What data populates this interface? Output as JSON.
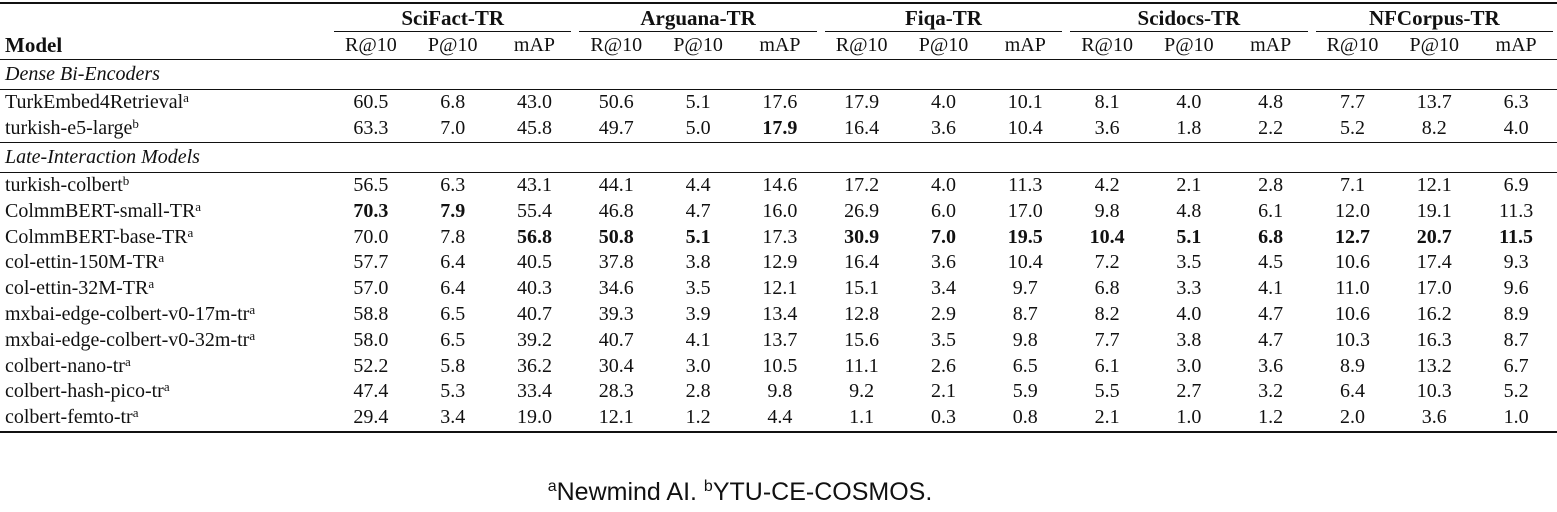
{
  "header": {
    "model_label": "Model",
    "datasets": [
      "SciFact-TR",
      "Arguana-TR",
      "Fiqa-TR",
      "Scidocs-TR",
      "NFCorpus-TR"
    ],
    "metrics": [
      "R@10",
      "P@10",
      "mAP"
    ]
  },
  "sections": [
    {
      "title": "Dense Bi-Encoders",
      "rows": [
        {
          "model": "TurkEmbed4Retrieval",
          "sup": "a",
          "values": [
            "60.5",
            "6.8",
            "43.0",
            "50.6",
            "5.1",
            "17.6",
            "17.9",
            "4.0",
            "10.1",
            "8.1",
            "4.0",
            "4.8",
            "7.7",
            "13.7",
            "6.3"
          ],
          "bold": []
        },
        {
          "model": "turkish-e5-large",
          "sup": "b",
          "values": [
            "63.3",
            "7.0",
            "45.8",
            "49.7",
            "5.0",
            "17.9",
            "16.4",
            "3.6",
            "10.4",
            "3.6",
            "1.8",
            "2.2",
            "5.2",
            "8.2",
            "4.0"
          ],
          "bold": [
            5
          ]
        }
      ]
    },
    {
      "title": "Late-Interaction Models",
      "rows": [
        {
          "model": "turkish-colbert",
          "sup": "b",
          "values": [
            "56.5",
            "6.3",
            "43.1",
            "44.1",
            "4.4",
            "14.6",
            "17.2",
            "4.0",
            "11.3",
            "4.2",
            "2.1",
            "2.8",
            "7.1",
            "12.1",
            "6.9"
          ],
          "bold": []
        },
        {
          "model": "ColmmBERT-small-TR",
          "sup": "a",
          "values": [
            "70.3",
            "7.9",
            "55.4",
            "46.8",
            "4.7",
            "16.0",
            "26.9",
            "6.0",
            "17.0",
            "9.8",
            "4.8",
            "6.1",
            "12.0",
            "19.1",
            "11.3"
          ],
          "bold": [
            0,
            1
          ]
        },
        {
          "model": "ColmmBERT-base-TR",
          "sup": "a",
          "values": [
            "70.0",
            "7.8",
            "56.8",
            "50.8",
            "5.1",
            "17.3",
            "30.9",
            "7.0",
            "19.5",
            "10.4",
            "5.1",
            "6.8",
            "12.7",
            "20.7",
            "11.5"
          ],
          "bold": [
            2,
            3,
            4,
            6,
            7,
            8,
            9,
            10,
            11,
            12,
            13,
            14
          ]
        },
        {
          "model": "col-ettin-150M-TR",
          "sup": "a",
          "values": [
            "57.7",
            "6.4",
            "40.5",
            "37.8",
            "3.8",
            "12.9",
            "16.4",
            "3.6",
            "10.4",
            "7.2",
            "3.5",
            "4.5",
            "10.6",
            "17.4",
            "9.3"
          ],
          "bold": []
        },
        {
          "model": "col-ettin-32M-TR",
          "sup": "a",
          "values": [
            "57.0",
            "6.4",
            "40.3",
            "34.6",
            "3.5",
            "12.1",
            "15.1",
            "3.4",
            "9.7",
            "6.8",
            "3.3",
            "4.1",
            "11.0",
            "17.0",
            "9.6"
          ],
          "bold": []
        },
        {
          "model": "mxbai-edge-colbert-v0-17m-tr",
          "sup": "a",
          "values": [
            "58.8",
            "6.5",
            "40.7",
            "39.3",
            "3.9",
            "13.4",
            "12.8",
            "2.9",
            "8.7",
            "8.2",
            "4.0",
            "4.7",
            "10.6",
            "16.2",
            "8.9"
          ],
          "bold": []
        },
        {
          "model": "mxbai-edge-colbert-v0-32m-tr",
          "sup": "a",
          "values": [
            "58.0",
            "6.5",
            "39.2",
            "40.7",
            "4.1",
            "13.7",
            "15.6",
            "3.5",
            "9.8",
            "7.7",
            "3.8",
            "4.7",
            "10.3",
            "16.3",
            "8.7"
          ],
          "bold": []
        },
        {
          "model": "colbert-nano-tr",
          "sup": "a",
          "values": [
            "52.2",
            "5.8",
            "36.2",
            "30.4",
            "3.0",
            "10.5",
            "11.1",
            "2.6",
            "6.5",
            "6.1",
            "3.0",
            "3.6",
            "8.9",
            "13.2",
            "6.7"
          ],
          "bold": []
        },
        {
          "model": "colbert-hash-pico-tr",
          "sup": "a",
          "values": [
            "47.4",
            "5.3",
            "33.4",
            "28.3",
            "2.8",
            "9.8",
            "9.2",
            "2.1",
            "5.9",
            "5.5",
            "2.7",
            "3.2",
            "6.4",
            "10.3",
            "5.2"
          ],
          "bold": []
        },
        {
          "model": "colbert-femto-tr",
          "sup": "a",
          "values": [
            "29.4",
            "3.4",
            "19.0",
            "12.1",
            "1.2",
            "4.4",
            "1.1",
            "0.3",
            "0.8",
            "2.1",
            "1.0",
            "1.2",
            "2.0",
            "3.6",
            "1.0"
          ],
          "bold": []
        }
      ]
    }
  ],
  "footnote": {
    "a_mark": "a",
    "a_text": "Newmind AI. ",
    "b_mark": "b",
    "b_text": "YTU-CE-COSMOS."
  }
}
